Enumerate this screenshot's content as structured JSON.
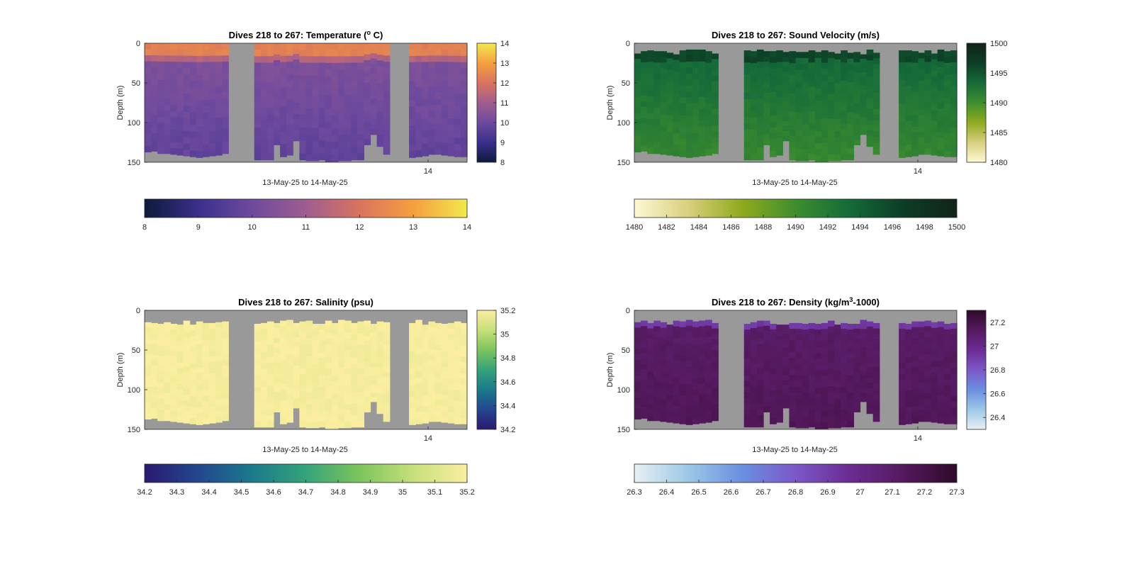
{
  "figure": {
    "background": "#ffffff",
    "nodata_color": "#999999"
  },
  "chart_data": [
    {
      "id": "temperature",
      "type": "heatmap",
      "title_main": "Dives 218 to 267: Temperature (",
      "title_sup": "o",
      "title_end": " C)",
      "xlabel": "13-May-25 to 14-May-25",
      "ylabel": "Depth (m)",
      "ylim": [
        0,
        150
      ],
      "yticks": [
        0,
        50,
        100,
        150
      ],
      "xtick_label": "14",
      "n_profiles": 50,
      "cmap": [
        "#0d1b3a",
        "#3a2f8c",
        "#6e4a9e",
        "#9f5d8f",
        "#d9735e",
        "#f59f3e",
        "#f2e84d"
      ],
      "clim": [
        8,
        14
      ],
      "vertical_ticks": [
        14,
        13,
        12,
        11,
        10,
        9,
        8
      ],
      "horizontal_ticks": [
        8,
        9,
        10,
        11,
        12,
        13,
        14
      ],
      "bottom_depth": [
        137,
        136,
        139,
        139,
        140,
        141,
        142,
        143,
        144,
        143,
        142,
        141,
        139
      ],
      "gap1_profiles": 4,
      "bottom_depth_b": [
        147,
        147,
        147,
        128,
        143,
        141,
        123,
        147,
        148,
        148,
        147,
        149,
        149,
        148,
        148,
        147,
        147,
        128,
        115,
        130,
        140
      ],
      "gap2_profiles": 3,
      "bottom_depth_c": [
        144,
        143,
        142,
        140,
        140,
        141,
        142,
        143,
        143
      ]
    },
    {
      "id": "sound_velocity",
      "type": "heatmap",
      "title_main": "Dives 218 to 267: Sound Velocity (m/s)",
      "title_sup": "",
      "title_end": "",
      "xlabel": "13-May-25 to 14-May-25",
      "ylabel": "Depth (m)",
      "ylim": [
        0,
        150
      ],
      "yticks": [
        0,
        50,
        100,
        150
      ],
      "xtick_label": "14",
      "cmap": [
        "#fdf8d4",
        "#d9cf7d",
        "#8faa1c",
        "#3e8e2e",
        "#146b39",
        "#0d3d25",
        "#112419"
      ],
      "clim": [
        1480,
        1500
      ],
      "vertical_ticks": [
        1500,
        1495,
        1490,
        1485,
        1480
      ],
      "horizontal_ticks": [
        1480,
        1482,
        1484,
        1486,
        1488,
        1490,
        1492,
        1494,
        1496,
        1498,
        1500
      ]
    },
    {
      "id": "salinity",
      "type": "heatmap",
      "title_main": "Dives 218 to 267: Salinity (psu)",
      "title_sup": "",
      "title_end": "",
      "xlabel": "13-May-25 to 14-May-25",
      "ylabel": "Depth (m)",
      "ylim": [
        0,
        150
      ],
      "yticks": [
        0,
        50,
        100,
        150
      ],
      "xtick_label": "14",
      "cmap": [
        "#2a1a70",
        "#23478f",
        "#1b7a8c",
        "#34a37a",
        "#7cc45c",
        "#c7df7a",
        "#fbeea0"
      ],
      "clim": [
        34.2,
        35.2
      ],
      "vertical_ticks": [
        35.2,
        35,
        34.8,
        34.6,
        34.4,
        34.2
      ],
      "horizontal_ticks": [
        34.2,
        34.3,
        34.4,
        34.5,
        34.6,
        34.7,
        34.8,
        34.9,
        35,
        35.1,
        35.2
      ]
    },
    {
      "id": "density",
      "type": "heatmap",
      "title_main": "Dives 218 to 267: Density (kg/m",
      "title_sup": "3",
      "title_end": "-1000)",
      "xlabel": "13-May-25 to 14-May-25",
      "ylabel": "Depth (m)",
      "ylim": [
        0,
        150
      ],
      "yticks": [
        0,
        50,
        100,
        150
      ],
      "xtick_label": "14",
      "cmap": [
        "#e6f0f2",
        "#9cc8e6",
        "#6a8fe0",
        "#7c58c9",
        "#6b2c93",
        "#55195e",
        "#2e0a2a"
      ],
      "clim": [
        26.3,
        27.3
      ],
      "vertical_ticks": [
        27.2,
        27,
        26.8,
        26.6,
        26.4
      ],
      "horizontal_ticks": [
        26.3,
        26.4,
        26.5,
        26.6,
        26.7,
        26.8,
        26.9,
        27,
        27.1,
        27.2,
        27.3
      ]
    }
  ]
}
